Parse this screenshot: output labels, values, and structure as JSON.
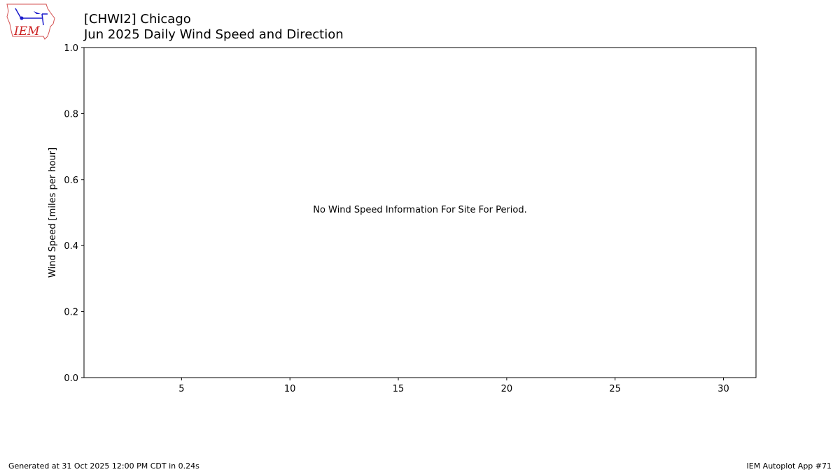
{
  "logo": {
    "text": "IEM",
    "color": "#cc2222"
  },
  "chart_data": {
    "type": "bar",
    "title": "[CHWI2] Chicago",
    "subtitle": "Jun 2025 Daily Wind Speed and Direction",
    "xlabel": "",
    "ylabel": "Wind Speed [miles per hour]",
    "xlim": [
      0.5,
      31.5
    ],
    "ylim": [
      0,
      1
    ],
    "xticks": [
      5,
      10,
      15,
      20,
      25,
      30
    ],
    "yticks": [
      0.0,
      0.2,
      0.4,
      0.6,
      0.8,
      1.0
    ],
    "yticklabels": [
      "0.0",
      "0.2",
      "0.4",
      "0.6",
      "0.8",
      "1.0"
    ],
    "series": [],
    "grid": false,
    "annotation": "No Wind Speed Information For Site For Period."
  },
  "footer": {
    "generated": "Generated at 31 Oct 2025 12:00 PM CDT in 0.24s",
    "app": "IEM Autoplot App #71"
  }
}
